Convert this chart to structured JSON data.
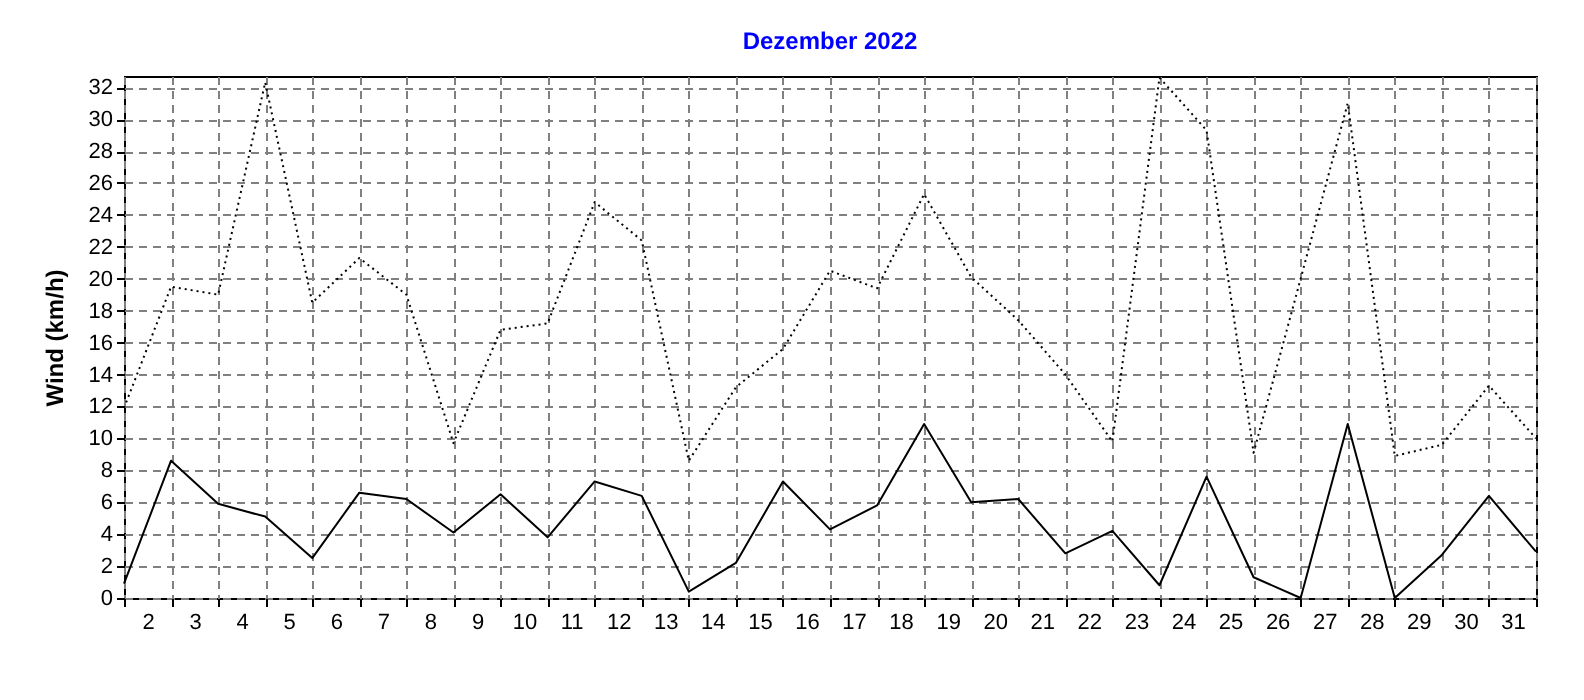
{
  "chart_data": {
    "type": "line",
    "title": "Dezember 2022",
    "ylabel": "Wind  (km/h)",
    "x": [
      1.5,
      2.5,
      3.5,
      4.5,
      5.5,
      6.5,
      7.5,
      8.5,
      9.5,
      10.5,
      11.5,
      12.5,
      13.5,
      14.5,
      15.5,
      16.5,
      17.5,
      18.5,
      19.5,
      20.5,
      21.5,
      22.5,
      23.5,
      24.5,
      25.5,
      26.5,
      27.5,
      28.5,
      29.5,
      30.5,
      31.5
    ],
    "series": [
      {
        "color": "#000000",
        "line_style": "dotted",
        "values": [
          11.9,
          19.5,
          19.0,
          32.3,
          18.5,
          21.3,
          19.0,
          9.7,
          16.8,
          17.2,
          24.8,
          22.4,
          8.6,
          13.2,
          15.6,
          20.5,
          19.4,
          25.3,
          20.1,
          17.4,
          14.0,
          9.8,
          32.6,
          29.3,
          9.1,
          20.0,
          31.0,
          8.9,
          9.6,
          13.3,
          10.0
        ]
      },
      {
        "color": "#000000",
        "line_style": "solid",
        "values": [
          0.9,
          8.6,
          5.9,
          5.1,
          2.5,
          6.6,
          6.2,
          4.1,
          6.5,
          3.8,
          7.3,
          6.4,
          0.4,
          2.2,
          7.3,
          4.3,
          5.8,
          10.9,
          6.0,
          6.2,
          2.8,
          4.2,
          0.8,
          7.6,
          1.3,
          0,
          10.9,
          0,
          2.7,
          6.4,
          2.9
        ]
      }
    ],
    "xlim": [
      1.5,
      31.5
    ],
    "xticks": [
      2,
      3,
      4,
      5,
      6,
      7,
      8,
      9,
      10,
      11,
      12,
      13,
      14,
      15,
      16,
      17,
      18,
      19,
      20,
      21,
      22,
      23,
      24,
      25,
      26,
      27,
      28,
      29,
      30,
      31
    ],
    "ylim": [
      0,
      32.7
    ],
    "yticks": [
      0,
      2,
      4,
      6,
      8,
      10,
      12,
      14,
      16,
      18,
      20,
      22,
      24,
      26,
      28,
      30,
      32
    ],
    "grid": true,
    "marker": "none"
  }
}
